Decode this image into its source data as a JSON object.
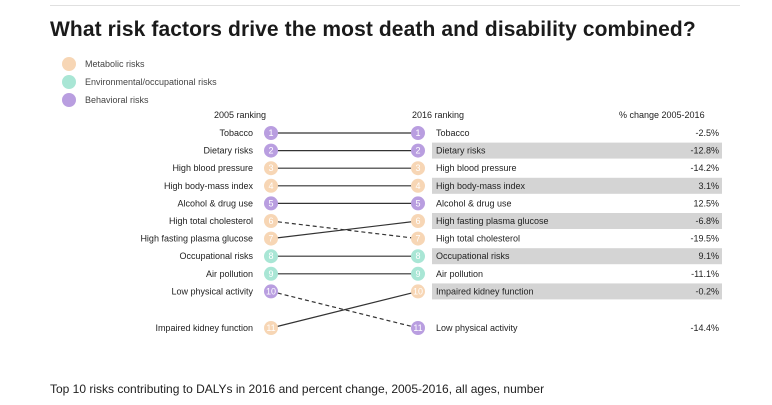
{
  "title": "What risk factors drive the most death and disability combined?",
  "legend": [
    {
      "label": "Metabolic risks",
      "category": "metabolic"
    },
    {
      "label": "Environmental/occupational risks",
      "category": "environmental"
    },
    {
      "label": "Behavioral risks",
      "category": "behavioral"
    }
  ],
  "colors": {
    "metabolic": "#f7d6b5",
    "environmental": "#a9e6d5",
    "behavioral": "#b99ee0",
    "highlight_bg": "#d4d4d4",
    "line": "#333333"
  },
  "headers": {
    "left": "2005 ranking",
    "right": "2016 ranking",
    "change": "% change 2005-2016"
  },
  "caption": "Top 10 risks contributing to DALYs in 2016 and percent change, 2005-2016, all ages, number",
  "chart_data": {
    "type": "slope",
    "left_ranking": [
      {
        "rank": 1,
        "label": "Tobacco",
        "category": "behavioral"
      },
      {
        "rank": 2,
        "label": "Dietary risks",
        "category": "behavioral"
      },
      {
        "rank": 3,
        "label": "High blood pressure",
        "category": "metabolic"
      },
      {
        "rank": 4,
        "label": "High body-mass index",
        "category": "metabolic"
      },
      {
        "rank": 5,
        "label": "Alcohol & drug use",
        "category": "behavioral"
      },
      {
        "rank": 6,
        "label": "High total cholesterol",
        "category": "metabolic"
      },
      {
        "rank": 7,
        "label": "High fasting plasma glucose",
        "category": "metabolic"
      },
      {
        "rank": 8,
        "label": "Occupational risks",
        "category": "environmental"
      },
      {
        "rank": 9,
        "label": "Air pollution",
        "category": "environmental"
      },
      {
        "rank": 10,
        "label": "Low physical activity",
        "category": "behavioral"
      },
      {
        "rank": 11,
        "label": "Impaired kidney function",
        "category": "metabolic"
      }
    ],
    "right_ranking": [
      {
        "rank": 1,
        "label": "Tobacco",
        "category": "behavioral",
        "change": "-2.5%",
        "highlight": false
      },
      {
        "rank": 2,
        "label": "Dietary risks",
        "category": "behavioral",
        "change": "-12.8%",
        "highlight": true
      },
      {
        "rank": 3,
        "label": "High blood pressure",
        "category": "metabolic",
        "change": "-14.2%",
        "highlight": false
      },
      {
        "rank": 4,
        "label": "High body-mass index",
        "category": "metabolic",
        "change": "3.1%",
        "highlight": true
      },
      {
        "rank": 5,
        "label": "Alcohol & drug use",
        "category": "behavioral",
        "change": "12.5%",
        "highlight": false
      },
      {
        "rank": 6,
        "label": "High fasting plasma glucose",
        "category": "metabolic",
        "change": "-6.8%",
        "highlight": true
      },
      {
        "rank": 7,
        "label": "High total cholesterol",
        "category": "metabolic",
        "change": "-19.5%",
        "highlight": false
      },
      {
        "rank": 8,
        "label": "Occupational risks",
        "category": "environmental",
        "change": "9.1%",
        "highlight": true
      },
      {
        "rank": 9,
        "label": "Air pollution",
        "category": "environmental",
        "change": "-11.1%",
        "highlight": false
      },
      {
        "rank": 10,
        "label": "Impaired kidney function",
        "category": "metabolic",
        "change": "-0.2%",
        "highlight": true
      },
      {
        "rank": 11,
        "label": "Low physical activity",
        "category": "behavioral",
        "change": "-14.4%",
        "highlight": false
      }
    ],
    "links": [
      {
        "from": 1,
        "to": 1,
        "style": "solid"
      },
      {
        "from": 2,
        "to": 2,
        "style": "solid"
      },
      {
        "from": 3,
        "to": 3,
        "style": "solid"
      },
      {
        "from": 4,
        "to": 4,
        "style": "solid"
      },
      {
        "from": 5,
        "to": 5,
        "style": "solid"
      },
      {
        "from": 6,
        "to": 7,
        "style": "dashed"
      },
      {
        "from": 7,
        "to": 6,
        "style": "solid"
      },
      {
        "from": 8,
        "to": 8,
        "style": "solid"
      },
      {
        "from": 9,
        "to": 9,
        "style": "solid"
      },
      {
        "from": 10,
        "to": 11,
        "style": "dashed"
      },
      {
        "from": 11,
        "to": 10,
        "style": "solid"
      }
    ]
  }
}
